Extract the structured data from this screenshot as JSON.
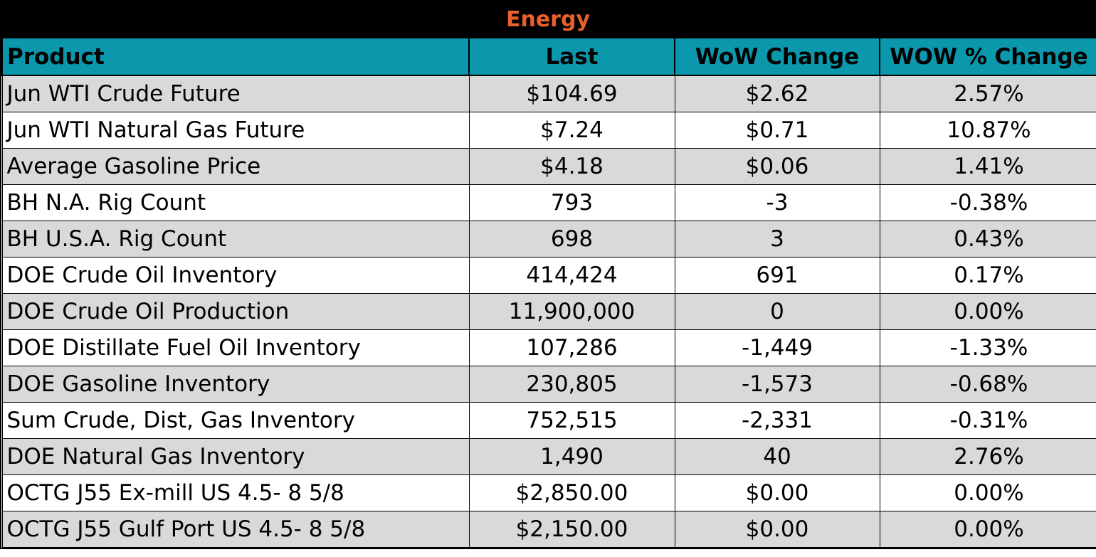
{
  "title": "Energy",
  "colors": {
    "title_bg": "#000000",
    "title_text": "#e8602c",
    "header_bg": "#0b97ac",
    "row_shade": "#d9d9d9",
    "row_plain": "#ffffff"
  },
  "headers": {
    "product": "Product",
    "last": "Last",
    "wow_change": "WoW Change",
    "wow_pct_change": "WOW % Change"
  },
  "rows": [
    {
      "product": "Jun WTI Crude Future",
      "last": "$104.69",
      "wow_change": "$2.62",
      "wow_pct": "2.57%"
    },
    {
      "product": "Jun WTI Natural Gas Future",
      "last": "$7.24",
      "wow_change": "$0.71",
      "wow_pct": "10.87%"
    },
    {
      "product": "Average Gasoline Price",
      "last": "$4.18",
      "wow_change": "$0.06",
      "wow_pct": "1.41%"
    },
    {
      "product": "BH N.A. Rig Count",
      "last": "793",
      "wow_change": "-3",
      "wow_pct": "-0.38%"
    },
    {
      "product": "BH U.S.A. Rig Count",
      "last": "698",
      "wow_change": "3",
      "wow_pct": "0.43%"
    },
    {
      "product": "DOE Crude Oil Inventory",
      "last": "414,424",
      "wow_change": "691",
      "wow_pct": "0.17%"
    },
    {
      "product": "DOE Crude Oil Production",
      "last": "11,900,000",
      "wow_change": "0",
      "wow_pct": "0.00%"
    },
    {
      "product": "DOE Distillate Fuel Oil Inventory",
      "last": "107,286",
      "wow_change": "-1,449",
      "wow_pct": "-1.33%"
    },
    {
      "product": "DOE Gasoline Inventory",
      "last": "230,805",
      "wow_change": "-1,573",
      "wow_pct": "-0.68%"
    },
    {
      "product": "Sum Crude, Dist, Gas Inventory",
      "last": "752,515",
      "wow_change": "-2,331",
      "wow_pct": "-0.31%"
    },
    {
      "product": "DOE Natural Gas Inventory",
      "last": "1,490",
      "wow_change": "40",
      "wow_pct": "2.76%"
    },
    {
      "product": "OCTG J55 Ex-mill US 4.5- 8 5/8",
      "last": "$2,850.00",
      "wow_change": "$0.00",
      "wow_pct": "0.00%"
    },
    {
      "product": "OCTG J55 Gulf Port US 4.5- 8 5/8",
      "last": "$2,150.00",
      "wow_change": "$0.00",
      "wow_pct": "0.00%"
    }
  ]
}
